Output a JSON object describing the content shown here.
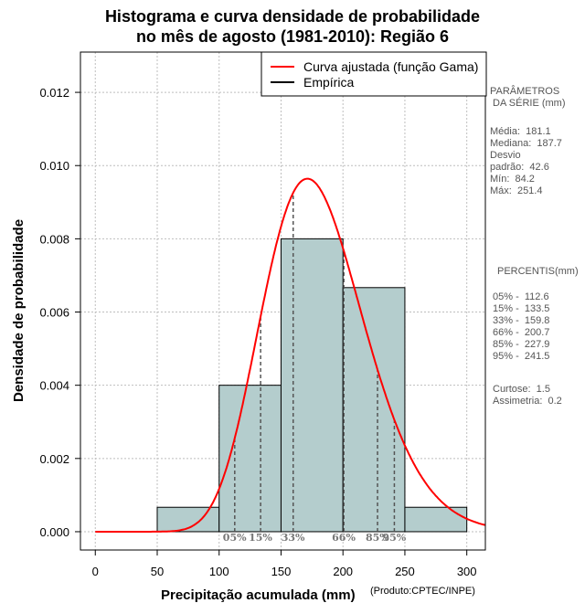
{
  "chart_data": {
    "type": "bar",
    "title_line1": "Histograma e curva densidade de probabilidade",
    "title_line2": "no mês de agosto (1981-2010): Região 6",
    "xlabel": "Precipitação acumulada (mm)",
    "ylabel": "Densidade de probabilidade",
    "credit": "(Produto:CPTEC/INPE)",
    "xlim": [
      -12,
      315
    ],
    "ylim": [
      -0.0005,
      0.0131
    ],
    "x_ticks": [
      0,
      50,
      100,
      150,
      200,
      250,
      300
    ],
    "x_tick_labels": [
      "0",
      "50",
      "100",
      "150",
      "200",
      "250",
      "300"
    ],
    "y_ticks": [
      0.0,
      0.002,
      0.004,
      0.006,
      0.008,
      0.01,
      0.012
    ],
    "y_tick_labels": [
      "0.000",
      "0.002",
      "0.004",
      "0.006",
      "0.008",
      "0.010",
      "0.012"
    ],
    "bins": [
      {
        "x0": 50,
        "x1": 100,
        "density": 0.000667
      },
      {
        "x0": 100,
        "x1": 150,
        "density": 0.004
      },
      {
        "x0": 150,
        "x1": 200,
        "density": 0.008
      },
      {
        "x0": 200,
        "x1": 250,
        "density": 0.006667
      },
      {
        "x0": 250,
        "x1": 300,
        "density": 0.000667
      }
    ],
    "gamma_fit": {
      "shape": 18.3,
      "scale": 9.9,
      "x_max": 315
    },
    "percentile_lines": [
      {
        "label": "05%",
        "x": 112.6
      },
      {
        "label": "15%",
        "x": 133.5
      },
      {
        "label": "33%",
        "x": 159.8
      },
      {
        "label": "66%",
        "x": 200.7
      },
      {
        "label": "85%",
        "x": 227.9
      },
      {
        "label": "95%",
        "x": 241.5
      }
    ],
    "legend": [
      {
        "label": "Curva ajustada (função Gama)",
        "color": "#ff0000"
      },
      {
        "label": "Empírica",
        "color": "#000000"
      }
    ],
    "legend_position": "top-right",
    "grid": true,
    "colors": {
      "bar_fill": "#b4cdcd",
      "curve": "#ff0000",
      "grid": "#bebebe",
      "percentile": "#555555"
    }
  },
  "side_panel": {
    "params_title": "PARÂMETROS\n DA SÉRIE (mm)",
    "params_body": "Média:  181.1\nMediana:  187.7\nDesvio\npadrão:  42.6\nMín:  84.2\nMáx:  251.4",
    "percentis_title": "PERCENTIS(mm)",
    "percentis_body": "05% -  112.6\n15% -  133.5\n33% -  159.8\n66% -  200.7\n85% -  227.9\n95% -  241.5",
    "stats_body": "Curtose:  1.5\nAssimetria:  0.2"
  }
}
